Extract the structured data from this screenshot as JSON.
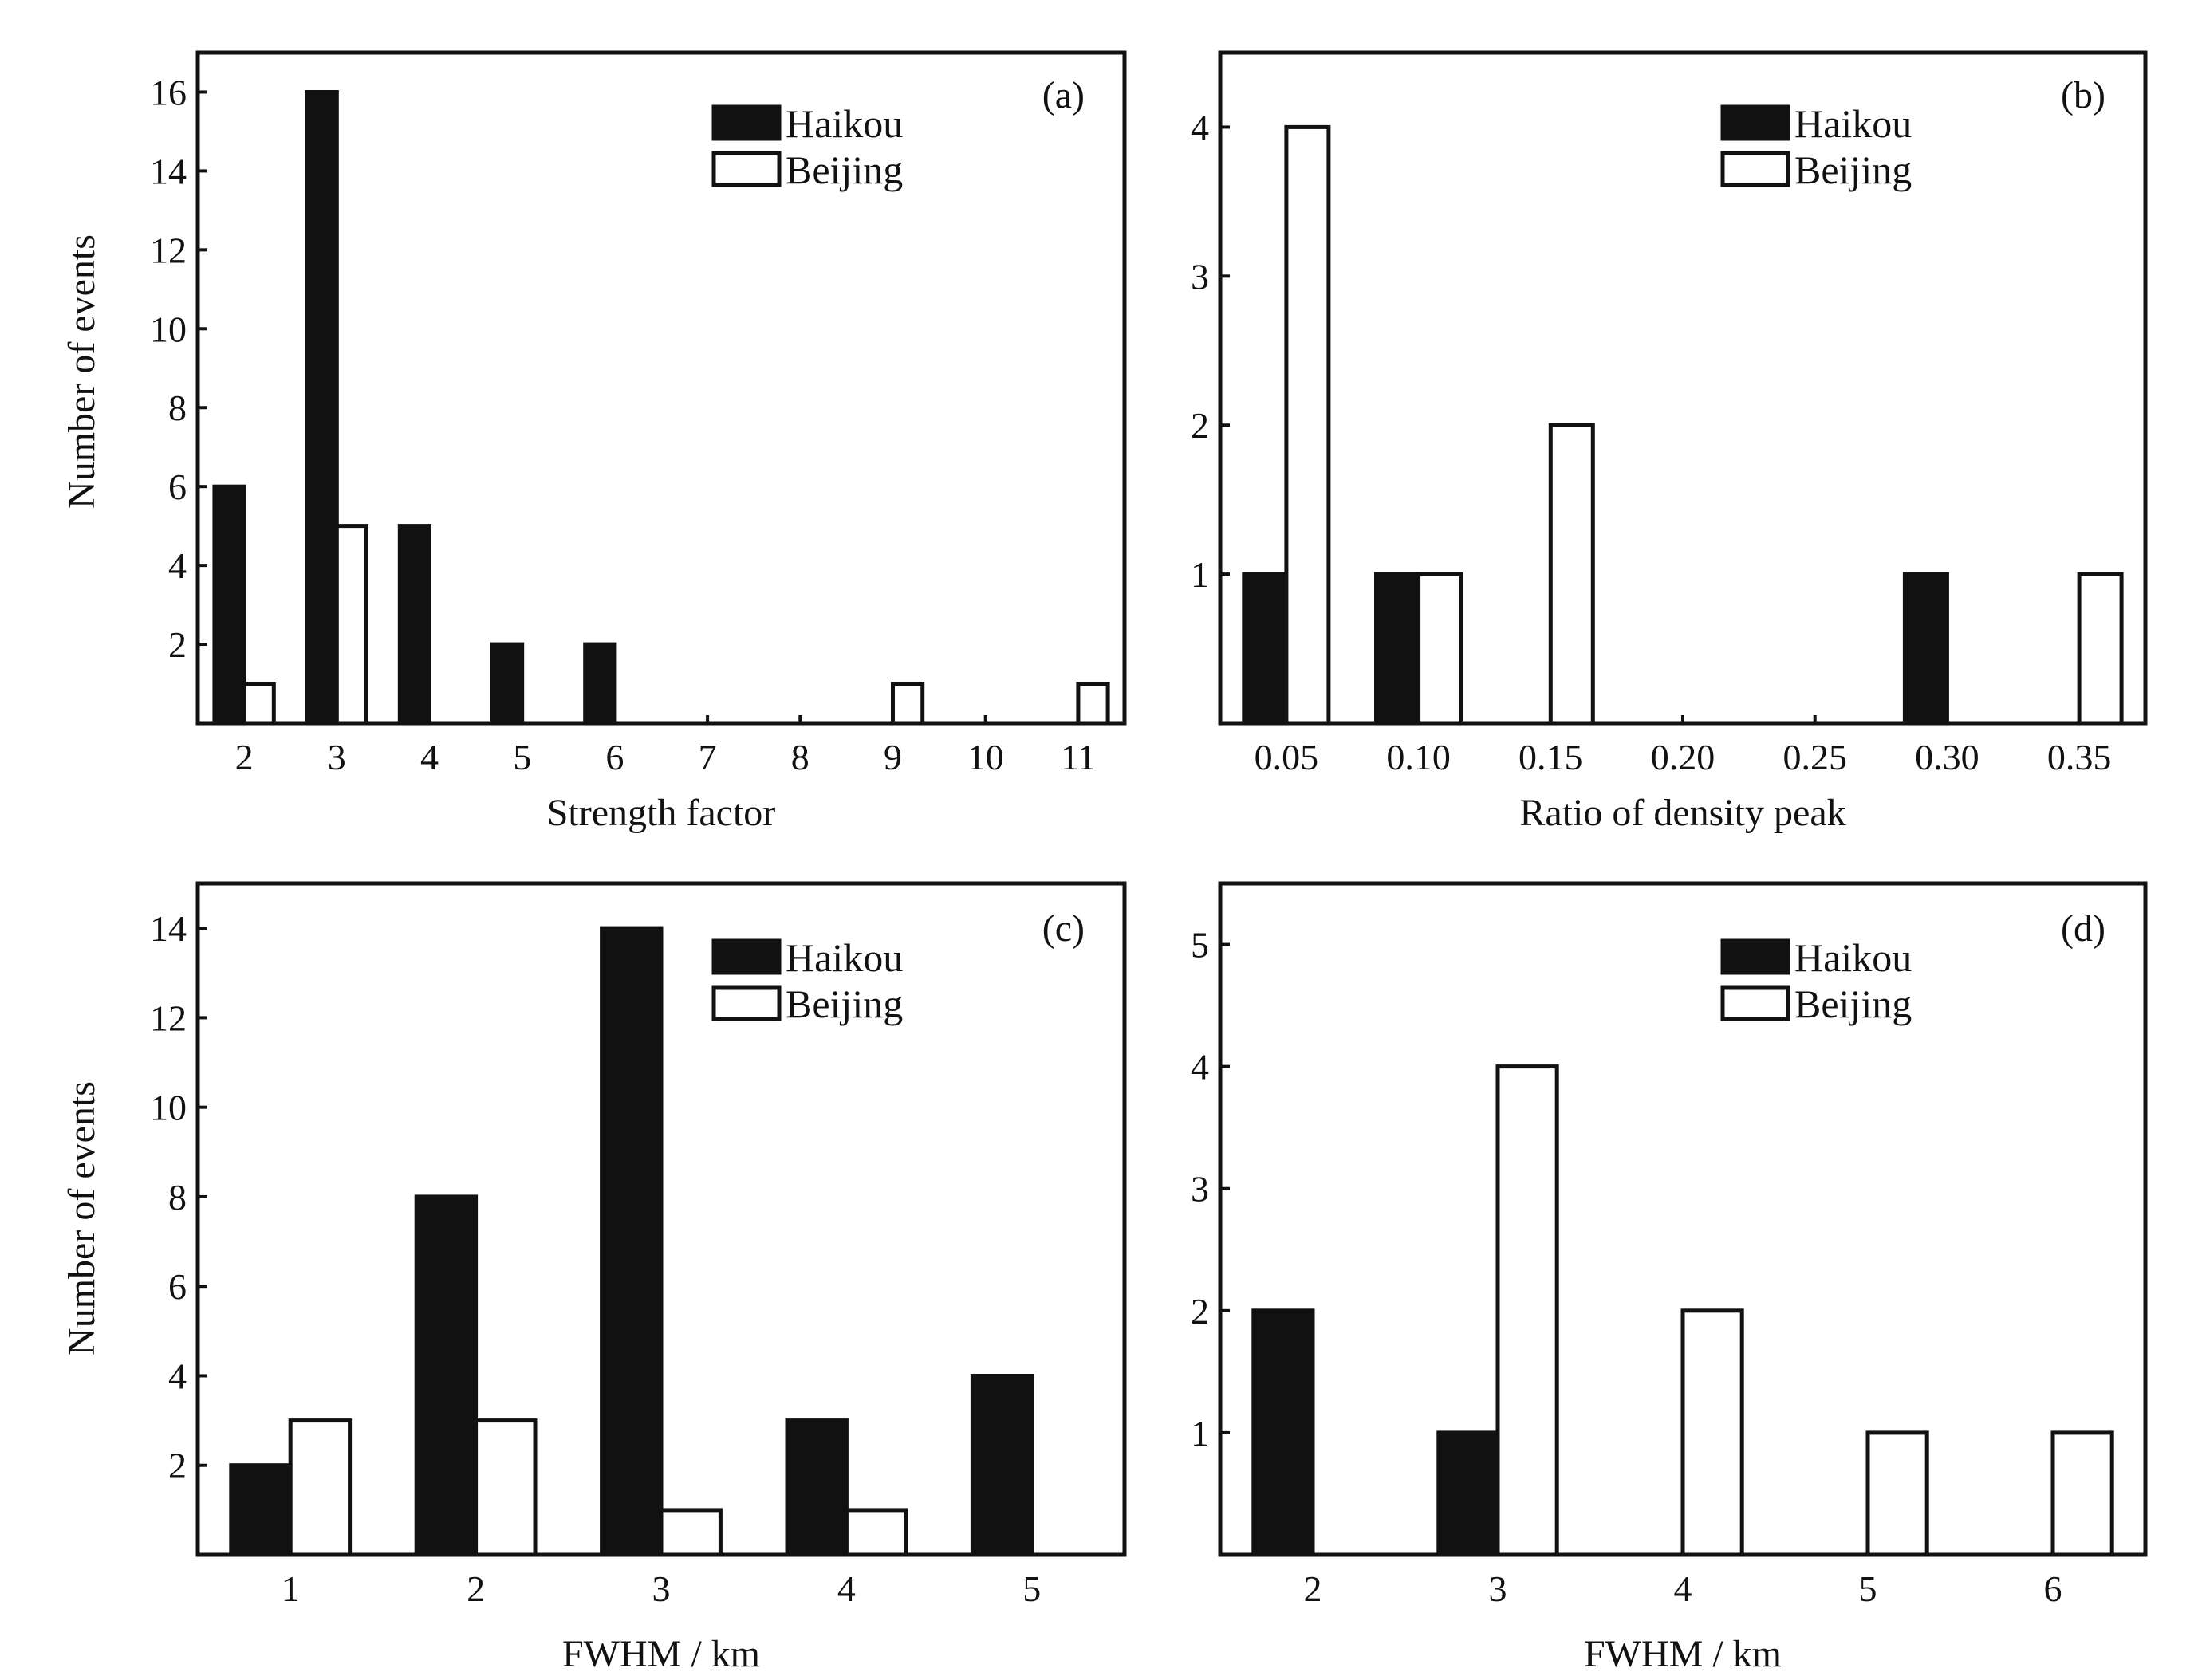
{
  "chart_data": [
    {
      "panel": "(a)",
      "type": "bar",
      "xlabel": "Strength factor",
      "ylabel": "Number of events",
      "categories": [
        "2",
        "3",
        "4",
        "5",
        "6",
        "7",
        "8",
        "9",
        "10",
        "11"
      ],
      "yticks": [
        "2",
        "4",
        "6",
        "8",
        "10",
        "12",
        "14",
        "16"
      ],
      "ylim": [
        0,
        17
      ],
      "series": [
        {
          "name": "Haikou",
          "values": [
            6,
            16,
            5,
            2,
            2,
            0,
            0,
            0,
            0,
            0
          ]
        },
        {
          "name": "Beijing",
          "values": [
            1,
            5,
            0,
            0,
            0,
            0,
            0,
            1,
            0,
            1
          ]
        }
      ],
      "legend": "top-right",
      "grid": false
    },
    {
      "panel": "(b)",
      "type": "bar",
      "xlabel": "Ratio of density peak",
      "ylabel": "",
      "categories": [
        "0.05",
        "0.10",
        "0.15",
        "0.20",
        "0.25",
        "0.30",
        "0.35"
      ],
      "yticks": [
        "1",
        "2",
        "3",
        "4"
      ],
      "ylim": [
        0,
        4.5
      ],
      "series": [
        {
          "name": "Haikou",
          "values": [
            1,
            1,
            0,
            0,
            0,
            1,
            0
          ]
        },
        {
          "name": "Beijing",
          "values": [
            4,
            1,
            2,
            0,
            0,
            0,
            1
          ]
        }
      ],
      "legend": "top-right",
      "grid": false
    },
    {
      "panel": "(c)",
      "type": "bar",
      "xlabel": "FWHM / km",
      "ylabel": "Number of events",
      "categories": [
        "1",
        "2",
        "3",
        "4",
        "5"
      ],
      "yticks": [
        "2",
        "4",
        "6",
        "8",
        "10",
        "12",
        "14"
      ],
      "ylim": [
        0,
        15
      ],
      "series": [
        {
          "name": "Haikou",
          "values": [
            2,
            8,
            14,
            3,
            4
          ]
        },
        {
          "name": "Beijing",
          "values": [
            3,
            3,
            1,
            1,
            0
          ]
        }
      ],
      "legend": "top-right",
      "grid": false
    },
    {
      "panel": "(d)",
      "type": "bar",
      "xlabel": "FWHM / km",
      "ylabel": "",
      "categories": [
        "2",
        "3",
        "4",
        "5",
        "6"
      ],
      "yticks": [
        "1",
        "2",
        "3",
        "4",
        "5"
      ],
      "ylim": [
        0,
        5.5
      ],
      "series": [
        {
          "name": "Haikou",
          "values": [
            2,
            1,
            0,
            0,
            0
          ]
        },
        {
          "name": "Beijing",
          "values": [
            0,
            4,
            2,
            1,
            1
          ]
        }
      ],
      "legend": "top-right",
      "grid": false
    }
  ],
  "colors": {
    "haikou": "#111111",
    "beijing": "#ffffff",
    "axis": "#111111"
  }
}
